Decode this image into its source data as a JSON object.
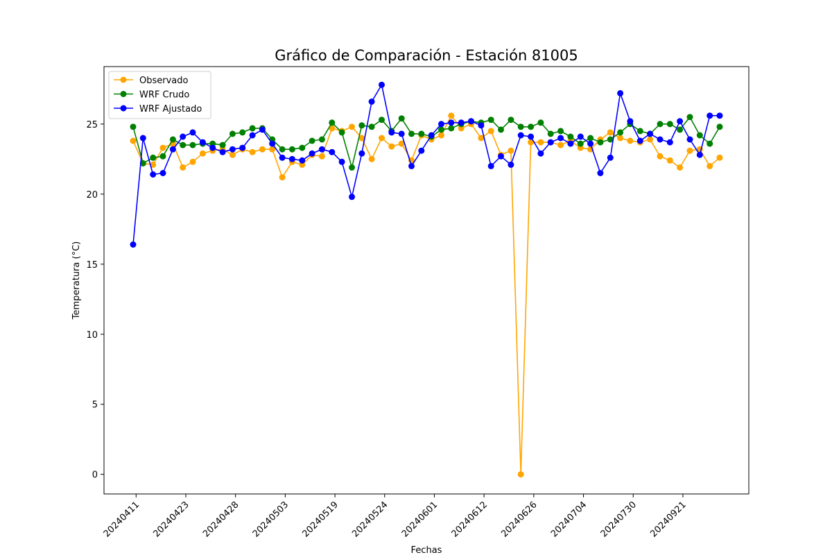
{
  "chart_data": {
    "type": "line",
    "title": "Gráfico de Comparación - Estación 81005",
    "xlabel": "Fechas",
    "ylabel": "Temperatura (°C)",
    "ylim": [
      -1.4,
      29.1
    ],
    "yticks": [
      0,
      5,
      10,
      15,
      20,
      25
    ],
    "xtick_labels": [
      "20240411",
      "20240423",
      "20240428",
      "20240503",
      "20240519",
      "20240524",
      "20240601",
      "20240612",
      "20240626",
      "20240704",
      "20240730",
      "20240921"
    ],
    "legend_position": "upper left",
    "grid": false,
    "series": [
      {
        "name": "Observado",
        "color": "#ffa500",
        "values": [
          23.8,
          22.2,
          22.1,
          23.3,
          23.6,
          21.9,
          22.3,
          22.9,
          23.1,
          23.2,
          22.8,
          23.2,
          23.0,
          23.2,
          23.2,
          21.2,
          22.3,
          22.1,
          22.8,
          22.7,
          24.7,
          24.5,
          24.8,
          24.0,
          22.5,
          24.0,
          23.4,
          23.6,
          22.4,
          24.2,
          23.9,
          24.2,
          25.6,
          24.7,
          25.0,
          24.0,
          24.5,
          22.8,
          23.1,
          0.0,
          23.7,
          23.7,
          23.7,
          23.5,
          23.8,
          23.3,
          23.2,
          23.9,
          24.4,
          24.0,
          23.8,
          23.7,
          23.9,
          22.7,
          22.4,
          21.9,
          23.1,
          23.2,
          22.0,
          22.6
        ]
      },
      {
        "name": "WRF Crudo",
        "color": "#008000",
        "values": [
          24.8,
          22.2,
          22.6,
          22.7,
          23.9,
          23.5,
          23.5,
          23.6,
          23.6,
          23.5,
          24.3,
          24.4,
          24.7,
          24.7,
          23.9,
          23.2,
          23.2,
          23.3,
          23.8,
          23.9,
          25.1,
          24.4,
          21.9,
          24.9,
          24.8,
          25.3,
          24.5,
          25.4,
          24.3,
          24.3,
          24.1,
          24.6,
          24.7,
          25.0,
          25.2,
          25.1,
          25.3,
          24.6,
          25.3,
          24.8,
          24.8,
          25.1,
          24.3,
          24.5,
          24.1,
          23.6,
          24.0,
          23.7,
          23.9,
          24.4,
          25.0,
          24.5,
          24.3,
          25.0,
          25.0,
          24.6,
          25.5,
          24.2,
          23.6,
          24.8
        ]
      },
      {
        "name": "WRF Ajustado",
        "color": "#0000ff",
        "values": [
          16.4,
          24.0,
          21.4,
          21.5,
          23.2,
          24.1,
          24.4,
          23.7,
          23.3,
          23.0,
          23.2,
          23.3,
          24.2,
          24.6,
          23.6,
          22.6,
          22.5,
          22.4,
          22.9,
          23.2,
          23.0,
          22.3,
          19.8,
          22.9,
          26.6,
          27.8,
          24.4,
          24.3,
          22.0,
          23.1,
          24.2,
          25.0,
          25.1,
          25.1,
          25.2,
          24.9,
          22.0,
          22.7,
          22.1,
          24.2,
          24.1,
          22.9,
          23.7,
          24.0,
          23.6,
          24.1,
          23.6,
          21.5,
          22.6,
          27.2,
          25.2,
          23.8,
          24.3,
          23.9,
          23.7,
          25.2,
          23.9,
          22.8,
          25.6,
          25.6
        ]
      }
    ]
  }
}
